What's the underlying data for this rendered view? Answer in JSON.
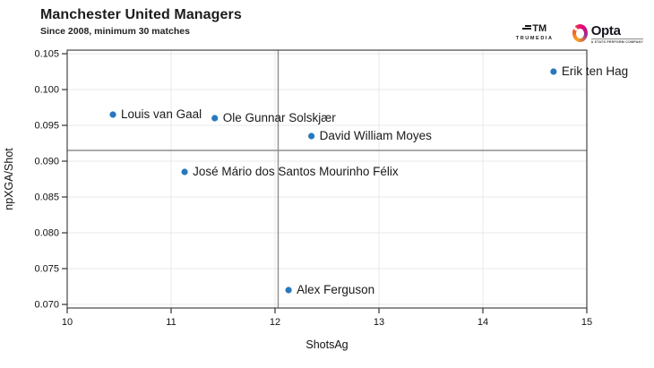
{
  "header": {
    "title": "Manchester United Managers",
    "subtitle": "Since 2008, minimum 30 matches"
  },
  "branding": {
    "trumedia": {
      "mark": "TM",
      "name": "TRUMEDIA"
    },
    "opta": {
      "name": "Opta",
      "subtext": "A STATS PERFORM COMPANY"
    }
  },
  "chart_data": {
    "type": "scatter",
    "title": "Manchester United Managers",
    "subtitle": "Since 2008, minimum 30 matches",
    "xlabel": "ShotsAg",
    "ylabel": "npXGA/Shot",
    "xlim": [
      10,
      15
    ],
    "ylim": [
      0.0695,
      0.1055
    ],
    "x_ticks": [
      10,
      11,
      12,
      13,
      14,
      15
    ],
    "y_ticks": [
      0.07,
      0.075,
      0.08,
      0.085,
      0.09,
      0.095,
      0.1,
      0.105
    ],
    "grid": true,
    "legend": "none",
    "point_color": "#2878bd",
    "label_color": "#1a1a1a",
    "grid_color": "#e8e8e8",
    "border_color": "#454545",
    "reference_line_color": "#8f8f8f",
    "reference_lines": {
      "x_mean": 12.03,
      "y_mean": 0.0915
    },
    "points": [
      {
        "label": "Erik ten Hag",
        "x": 14.68,
        "y": 0.1025
      },
      {
        "label": "Louis van Gaal",
        "x": 10.44,
        "y": 0.0965
      },
      {
        "label": "Ole Gunnar Solskjær",
        "x": 11.42,
        "y": 0.096
      },
      {
        "label": "David William Moyes",
        "x": 12.35,
        "y": 0.0935
      },
      {
        "label": "José Mário dos Santos Mourinho Félix",
        "x": 11.13,
        "y": 0.0885
      },
      {
        "label": "Alex Ferguson",
        "x": 12.13,
        "y": 0.072
      }
    ]
  }
}
